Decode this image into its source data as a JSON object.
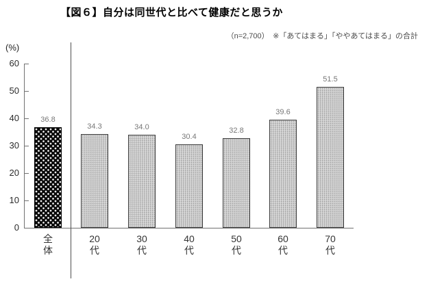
{
  "header": {
    "title": "【図６】自分は同世代と比べて健康だと思うか",
    "note": "（n=2,700）　※「あてはまる」「ややあてはまる」の合計"
  },
  "chart_data": {
    "type": "bar",
    "title": "【図６】自分は同世代と比べて健康だと思うか",
    "subtitle_note": "（n=2,700）　※「あてはまる」「ややあてはまる」の合計",
    "categories": [
      "全体",
      "20代",
      "30代",
      "40代",
      "50代",
      "60代",
      "70代"
    ],
    "category_lines": [
      [
        "全",
        "体"
      ],
      [
        "20",
        "代"
      ],
      [
        "30",
        "代"
      ],
      [
        "40",
        "代"
      ],
      [
        "50",
        "代"
      ],
      [
        "60",
        "代"
      ],
      [
        "70",
        "代"
      ]
    ],
    "values": [
      36.8,
      34.3,
      34.0,
      30.4,
      32.8,
      39.6,
      51.5
    ],
    "value_labels": [
      "36.8",
      "34.3",
      "34.0",
      "30.4",
      "32.8",
      "39.6",
      "51.5"
    ],
    "xlabel": "",
    "ylabel": "（％）",
    "ylabel_display": "(%)",
    "ylim": [
      0,
      60
    ],
    "yticks": [
      0,
      10,
      20,
      30,
      40,
      50,
      60
    ],
    "grid": false,
    "legend": "none",
    "highlight_category": "全体",
    "colors": {
      "highlight_bar": "#050505",
      "highlight_dots": "#ededed",
      "bar_fill": "#cbcbcb",
      "bar_border": "#3a3a3a",
      "value_label": "#777777",
      "axis": "#707070",
      "title": "#000000",
      "note": "#4a4a4a"
    }
  }
}
